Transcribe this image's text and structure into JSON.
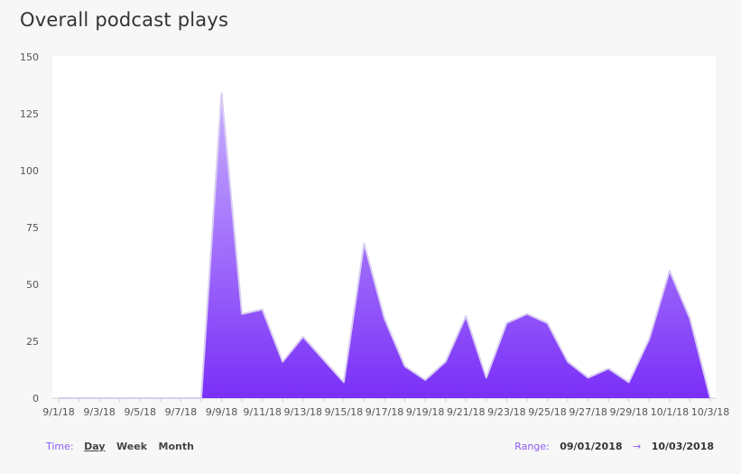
{
  "title": "Overall podcast plays",
  "controls": {
    "time_label": "Time:",
    "options": [
      "Day",
      "Week",
      "Month"
    ],
    "active_option": "Day",
    "range_label": "Range:",
    "range_start": "09/01/2018",
    "range_arrow": "→",
    "range_end": "10/03/2018"
  },
  "colors": {
    "fill_top": "#c8b0ff",
    "fill_bottom": "#7a2ff7",
    "stroke": "#d9ccf2",
    "axis": "#cfcfcf",
    "tick_text": "#555555"
  },
  "chart_data": {
    "type": "area",
    "title": "Overall podcast plays",
    "xlabel": "",
    "ylabel": "",
    "ylim": [
      0,
      150
    ],
    "yticks": [
      0,
      25,
      50,
      75,
      100,
      125,
      150
    ],
    "x": [
      "9/1/18",
      "9/2/18",
      "9/3/18",
      "9/4/18",
      "9/5/18",
      "9/6/18",
      "9/7/18",
      "9/8/18",
      "9/9/18",
      "9/10/18",
      "9/11/18",
      "9/12/18",
      "9/13/18",
      "9/14/18",
      "9/15/18",
      "9/16/18",
      "9/17/18",
      "9/18/18",
      "9/19/18",
      "9/20/18",
      "9/21/18",
      "9/22/18",
      "9/23/18",
      "9/24/18",
      "9/25/18",
      "9/26/18",
      "9/27/18",
      "9/28/18",
      "9/29/18",
      "9/30/18",
      "10/1/18",
      "10/2/18",
      "10/3/18"
    ],
    "xtick_labels": [
      "9/1/18",
      "9/3/18",
      "9/5/18",
      "9/7/18",
      "9/9/18",
      "9/11/18",
      "9/13/18",
      "9/15/18",
      "9/17/18",
      "9/19/18",
      "9/21/18",
      "9/23/18",
      "9/25/18",
      "9/27/18",
      "9/29/18",
      "10/1/18",
      "10/3/18"
    ],
    "values": [
      0,
      0,
      0,
      0,
      0,
      0,
      0,
      0,
      134,
      37,
      39,
      16,
      27,
      17,
      7,
      68,
      35,
      14,
      8,
      16,
      36,
      9,
      33,
      37,
      33,
      16,
      9,
      13,
      7,
      26,
      56,
      35,
      0
    ],
    "grid": false,
    "legend": "none"
  }
}
